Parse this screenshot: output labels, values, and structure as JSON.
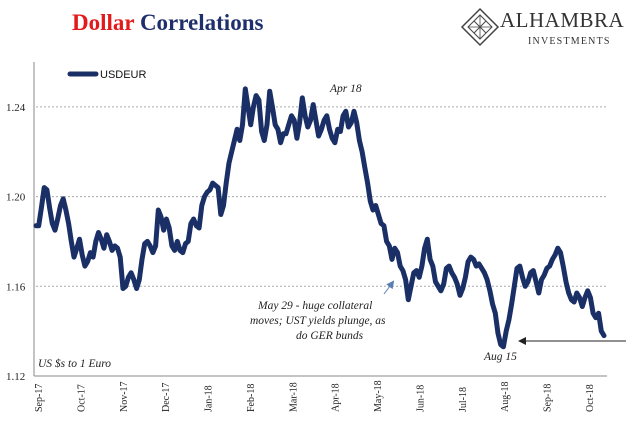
{
  "header": {
    "title_part1": "Dollar",
    "title_part2": "Correlations"
  },
  "logo": {
    "name": "ALHAMBRA",
    "sub": "INVESTMENTS",
    "icon": "diamond-lattice-icon"
  },
  "colors": {
    "series": "#1a2f66",
    "title_red": "#e31a1c",
    "title_blue": "#1f2f6b",
    "grid": "#aaaaaa",
    "arrow": "#5b7fb5"
  },
  "chart_data": {
    "type": "line",
    "title": "Dollar Correlations",
    "unit_note": "US $s to 1 Euro",
    "xlabel": "",
    "ylabel": "",
    "ylim": [
      1.12,
      1.26
    ],
    "yticks": [
      "1.12",
      "1.16",
      "1.20",
      "1.24"
    ],
    "xtick_labels": [
      "Sep-17",
      "Oct-17",
      "Nov-17",
      "Dec-17",
      "Jan-18",
      "Feb-18",
      "Mar-18",
      "Apr-18",
      "May-18",
      "Jun-18",
      "Jul-18",
      "Aug-18",
      "Sep-18",
      "Oct-18"
    ],
    "grid": "horizontal dashed",
    "legend": "top-left",
    "series": [
      {
        "name": "USDEUR",
        "color": "#1a2f66",
        "values": [
          1.187,
          1.187,
          1.195,
          1.204,
          1.203,
          1.195,
          1.188,
          1.185,
          1.19,
          1.196,
          1.199,
          1.194,
          1.188,
          1.18,
          1.173,
          1.177,
          1.181,
          1.174,
          1.169,
          1.171,
          1.175,
          1.173,
          1.18,
          1.184,
          1.181,
          1.177,
          1.183,
          1.18,
          1.176,
          1.178,
          1.177,
          1.173,
          1.159,
          1.16,
          1.164,
          1.166,
          1.163,
          1.159,
          1.163,
          1.172,
          1.179,
          1.18,
          1.178,
          1.175,
          1.178,
          1.194,
          1.191,
          1.185,
          1.19,
          1.186,
          1.178,
          1.176,
          1.18,
          1.176,
          1.175,
          1.179,
          1.18,
          1.188,
          1.19,
          1.187,
          1.186,
          1.196,
          1.2,
          1.202,
          1.203,
          1.206,
          1.205,
          1.204,
          1.192,
          1.196,
          1.206,
          1.215,
          1.22,
          1.225,
          1.23,
          1.225,
          1.232,
          1.248,
          1.24,
          1.232,
          1.24,
          1.245,
          1.243,
          1.229,
          1.225,
          1.232,
          1.247,
          1.24,
          1.232,
          1.23,
          1.224,
          1.228,
          1.228,
          1.232,
          1.236,
          1.234,
          1.226,
          1.233,
          1.244,
          1.236,
          1.231,
          1.234,
          1.241,
          1.234,
          1.227,
          1.23,
          1.234,
          1.236,
          1.23,
          1.226,
          1.224,
          1.23,
          1.229,
          1.236,
          1.238,
          1.231,
          1.233,
          1.238,
          1.233,
          1.225,
          1.22,
          1.213,
          1.206,
          1.198,
          1.194,
          1.196,
          1.192,
          1.188,
          1.187,
          1.18,
          1.178,
          1.172,
          1.177,
          1.175,
          1.169,
          1.167,
          1.163,
          1.154,
          1.16,
          1.166,
          1.167,
          1.164,
          1.169,
          1.177,
          1.181,
          1.172,
          1.169,
          1.162,
          1.16,
          1.158,
          1.161,
          1.168,
          1.169,
          1.166,
          1.164,
          1.161,
          1.156,
          1.159,
          1.164,
          1.171,
          1.173,
          1.172,
          1.169,
          1.17,
          1.168,
          1.166,
          1.163,
          1.158,
          1.152,
          1.148,
          1.139,
          1.134,
          1.133,
          1.14,
          1.145,
          1.152,
          1.16,
          1.168,
          1.169,
          1.164,
          1.16,
          1.162,
          1.166,
          1.167,
          1.162,
          1.157,
          1.163,
          1.165,
          1.168,
          1.169,
          1.172,
          1.174,
          1.177,
          1.175,
          1.169,
          1.162,
          1.157,
          1.154,
          1.153,
          1.157,
          1.155,
          1.151,
          1.155,
          1.158,
          1.155,
          1.148,
          1.146,
          1.148,
          1.14,
          1.138
        ]
      }
    ],
    "annotations": [
      {
        "text": "Apr 18",
        "x_index": 117,
        "y": 1.241
      },
      {
        "lines": [
          "May 29 - huge collateral",
          "moves; UST yields plunge, as",
          "do GER bunds"
        ],
        "points_to_index": 139
      },
      {
        "text": "Aug 15",
        "x_index": 167,
        "y": 1.128
      }
    ]
  }
}
